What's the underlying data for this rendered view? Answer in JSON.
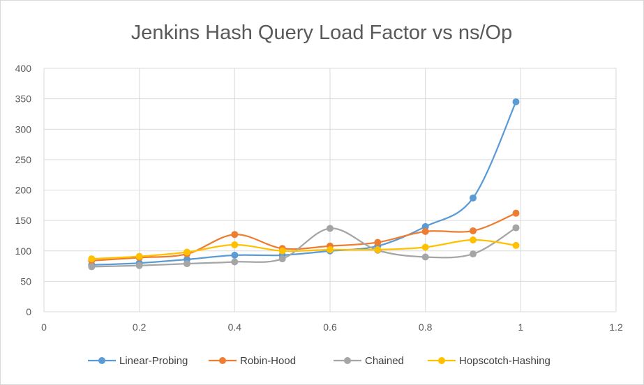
{
  "chart_data": {
    "type": "line",
    "title": "Jenkins  Hash Query Load Factor vs ns/Op",
    "xlabel": "",
    "ylabel": "",
    "xlim": [
      0,
      1.2
    ],
    "ylim": [
      0,
      400
    ],
    "x_ticks": [
      "0",
      "0.2",
      "0.4",
      "0.6",
      "0.8",
      "1",
      "1.2"
    ],
    "y_ticks": [
      "0",
      "50",
      "100",
      "150",
      "200",
      "250",
      "300",
      "350",
      "400"
    ],
    "grid": true,
    "smooth": true,
    "legend_position": "bottom",
    "x": [
      0.1,
      0.2,
      0.3,
      0.4,
      0.5,
      0.6,
      0.7,
      0.8,
      0.9,
      0.99
    ],
    "series": [
      {
        "name": "Linear-Probing",
        "color": "#5b9bd5",
        "values": [
          77,
          80,
          86,
          93,
          93,
          100,
          108,
          140,
          187,
          345
        ]
      },
      {
        "name": "Robin-Hood",
        "color": "#ed7d31",
        "values": [
          84,
          89,
          95,
          127,
          104,
          108,
          114,
          132,
          133,
          162
        ]
      },
      {
        "name": "Chained",
        "color": "#a5a5a5",
        "values": [
          74,
          76,
          79,
          82,
          87,
          137,
          101,
          90,
          95,
          138
        ]
      },
      {
        "name": "Hopscotch-Hashing",
        "color": "#ffc000",
        "values": [
          87,
          91,
          98,
          110,
          100,
          102,
          102,
          106,
          118,
          109
        ]
      }
    ]
  }
}
